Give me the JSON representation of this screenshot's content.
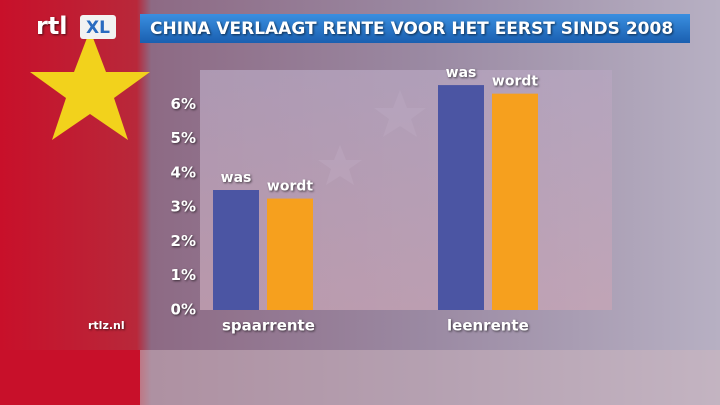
{
  "logo": "rtl",
  "logo_badge": "XL",
  "watermark": "rtlz.nl",
  "chart_data": {
    "type": "bar",
    "title": "CHINA VERLAAGT RENTE VOOR HET EERST SINDS 2008",
    "categories": [
      "spaarrente",
      "leenrente"
    ],
    "series": [
      {
        "name": "was",
        "color": "#4b55a3",
        "values": [
          3.5,
          6.56
        ]
      },
      {
        "name": "wordt",
        "color": "#f6a01e",
        "values": [
          3.25,
          6.31
        ]
      }
    ],
    "ylim": [
      0,
      7
    ],
    "yticks": [
      {
        "value": 0,
        "label": "0%"
      },
      {
        "value": 1,
        "label": "1%"
      },
      {
        "value": 2,
        "label": "2%"
      },
      {
        "value": 3,
        "label": "3%"
      },
      {
        "value": 4,
        "label": "4%"
      },
      {
        "value": 5,
        "label": "5%"
      },
      {
        "value": 6,
        "label": "6%"
      }
    ],
    "grid": false
  }
}
